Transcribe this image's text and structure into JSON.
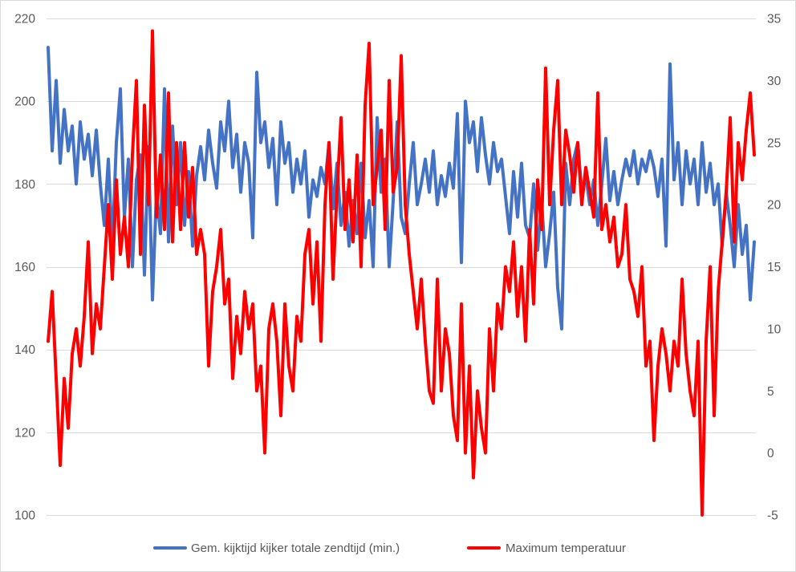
{
  "chart_data": {
    "type": "line",
    "title": "",
    "xlabel": "",
    "ylabel": "",
    "y2label": "",
    "ylim": [
      100,
      220
    ],
    "y2lim": [
      -5,
      35
    ],
    "yticks": [
      220,
      200,
      180,
      160,
      140,
      120,
      100
    ],
    "y2ticks": [
      35,
      30,
      25,
      20,
      15,
      10,
      5,
      0,
      -5
    ],
    "grid": true,
    "legend": "bottom",
    "series": [
      {
        "name": "Gem. kijktijd kijker totale zendtijd (min.)",
        "axis": "left",
        "color": "#4472C4",
        "values": [
          213,
          188,
          205,
          185,
          198,
          188,
          194,
          180,
          195,
          186,
          192,
          182,
          193,
          180,
          170,
          186,
          165,
          190,
          203,
          172,
          186,
          160,
          181,
          187,
          158,
          189,
          152,
          178,
          168,
          203,
          166,
          194,
          175,
          190,
          170,
          183,
          165,
          182,
          189,
          181,
          193,
          185,
          179,
          195,
          188,
          200,
          184,
          192,
          178,
          190,
          185,
          167,
          207,
          190,
          195,
          184,
          191,
          175,
          195,
          185,
          190,
          178,
          186,
          180,
          188,
          172,
          181,
          177,
          184,
          180,
          190,
          174,
          185,
          170,
          178,
          165,
          176,
          168,
          185,
          167,
          176,
          160,
          196,
          178,
          186,
          160,
          176,
          195,
          172,
          168,
          180,
          190,
          175,
          180,
          186,
          178,
          188,
          175,
          182,
          177,
          185,
          179,
          197,
          161,
          200,
          190,
          195,
          183,
          196,
          187,
          180,
          190,
          183,
          186,
          177,
          168,
          183,
          172,
          185,
          170,
          167,
          180,
          164,
          176,
          160,
          168,
          178,
          155,
          145,
          185,
          175,
          186,
          190,
          178,
          182,
          175,
          181,
          170,
          180,
          191,
          176,
          183,
          175,
          181,
          186,
          182,
          188,
          180,
          186,
          183,
          188,
          184,
          177,
          186,
          165,
          209,
          181,
          190,
          175,
          188,
          180,
          186,
          175,
          190,
          178,
          185,
          175,
          180,
          165,
          178,
          170,
          160,
          175,
          163,
          170,
          152,
          166
        ]
      },
      {
        "name": "Maximum temperatuur",
        "axis": "right",
        "color": "#FF0000",
        "values": [
          9,
          13,
          6,
          -1,
          6,
          2,
          8,
          10,
          7,
          11,
          17,
          8,
          12,
          10,
          15,
          20,
          14,
          22,
          16,
          19,
          15,
          24,
          30,
          16,
          28,
          20,
          34,
          19,
          24,
          18,
          29,
          17,
          25,
          18,
          25,
          19,
          23,
          16,
          18,
          16,
          7,
          13,
          15,
          18,
          12,
          14,
          6,
          11,
          8,
          13,
          10,
          12,
          5,
          7,
          0,
          10,
          12,
          9,
          3,
          12,
          7,
          5,
          11,
          9,
          16,
          18,
          12,
          17,
          9,
          20,
          25,
          14,
          21,
          27,
          18,
          22,
          17,
          24,
          15,
          28,
          33,
          20,
          23,
          26,
          18,
          30,
          21,
          23,
          32,
          20,
          16,
          13,
          10,
          14,
          9,
          5,
          4,
          14,
          5,
          10,
          8,
          3,
          1,
          12,
          0,
          7,
          -2,
          5,
          2,
          0,
          10,
          5,
          12,
          10,
          15,
          13,
          17,
          11,
          15,
          9,
          18,
          12,
          22,
          18,
          31,
          20,
          26,
          30,
          20,
          26,
          24,
          21,
          25,
          20,
          23,
          21,
          19,
          29,
          18,
          20,
          17,
          19,
          15,
          16,
          20,
          14,
          13,
          11,
          15,
          7,
          9,
          1,
          7,
          10,
          8,
          5,
          9,
          7,
          14,
          8,
          5,
          3,
          9,
          -5,
          9,
          15,
          3,
          13,
          17,
          21,
          27,
          17,
          25,
          22,
          26,
          29,
          24
        ]
      }
    ]
  }
}
